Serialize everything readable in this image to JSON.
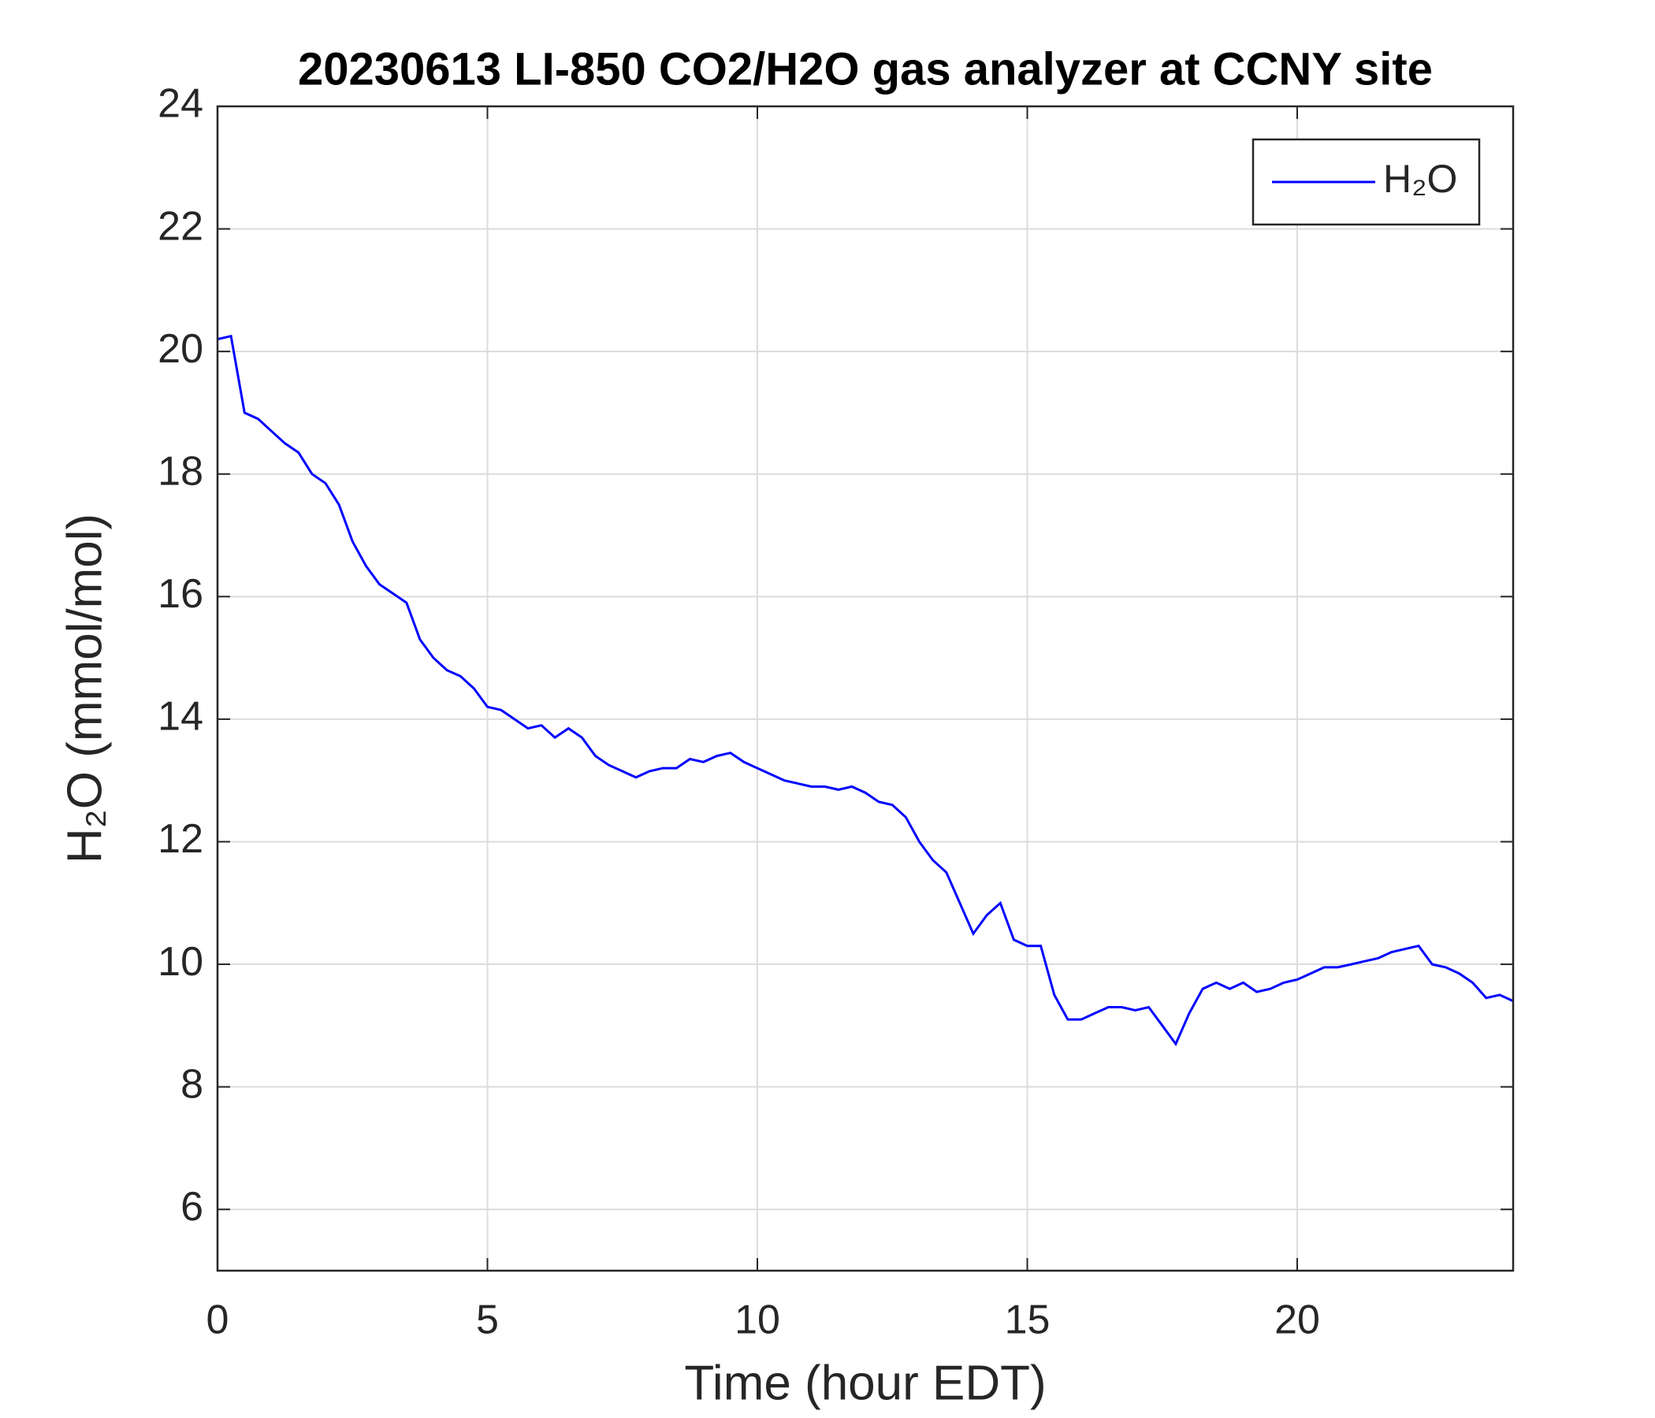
{
  "chart_data": {
    "type": "line",
    "title": "20230613 LI-850 CO2/H2O gas analyzer at CCNY site",
    "x_label": "Time (hour EDT)",
    "y_label": "H₂O (mmol/mol)",
    "x": [
      0,
      0.25,
      0.5,
      0.75,
      1,
      1.25,
      1.5,
      1.75,
      2,
      2.25,
      2.5,
      2.75,
      3,
      3.25,
      3.5,
      3.75,
      4,
      4.25,
      4.5,
      4.75,
      5,
      5.25,
      5.5,
      5.75,
      6,
      6.25,
      6.5,
      6.75,
      7,
      7.25,
      7.5,
      7.75,
      8,
      8.25,
      8.5,
      8.75,
      9,
      9.25,
      9.5,
      9.75,
      10,
      10.25,
      10.5,
      10.75,
      11,
      11.25,
      11.5,
      11.75,
      12,
      12.25,
      12.5,
      12.75,
      13,
      13.25,
      13.5,
      13.75,
      14,
      14.25,
      14.5,
      14.75,
      15,
      15.25,
      15.5,
      15.75,
      16,
      16.25,
      16.5,
      16.75,
      17,
      17.25,
      17.5,
      17.75,
      18,
      18.25,
      18.5,
      18.75,
      19,
      19.25,
      19.5,
      19.75,
      20,
      20.25,
      20.5,
      20.75,
      21,
      21.25,
      21.5,
      21.75,
      22,
      22.25,
      22.5,
      22.75,
      23,
      23.25,
      23.5,
      23.75,
      24
    ],
    "series": [
      {
        "name": "H₂O",
        "color": "#0000ff",
        "values": [
          20.2,
          20.25,
          19.0,
          18.9,
          18.7,
          18.5,
          18.35,
          18.0,
          17.85,
          17.5,
          16.9,
          16.5,
          16.2,
          16.05,
          15.9,
          15.3,
          15.0,
          14.8,
          14.7,
          14.5,
          14.2,
          14.15,
          14.0,
          13.85,
          13.9,
          13.7,
          13.85,
          13.7,
          13.4,
          13.25,
          13.15,
          13.05,
          13.15,
          13.2,
          13.2,
          13.35,
          13.3,
          13.4,
          13.45,
          13.3,
          13.2,
          13.1,
          13.0,
          12.95,
          12.9,
          12.9,
          12.85,
          12.9,
          12.8,
          12.65,
          12.6,
          12.4,
          12.0,
          11.7,
          11.5,
          11.0,
          10.5,
          10.8,
          11.0,
          10.4,
          10.3,
          10.3,
          9.5,
          9.1,
          9.1,
          9.2,
          9.3,
          9.3,
          9.25,
          9.3,
          9.0,
          8.7,
          9.2,
          9.6,
          9.7,
          9.6,
          9.7,
          9.55,
          9.6,
          9.7,
          9.75,
          9.85,
          9.95,
          9.95,
          10.0,
          10.05,
          10.1,
          10.2,
          10.25,
          10.3,
          10.0,
          9.95,
          9.85,
          9.7,
          9.45,
          9.5,
          9.4
        ]
      }
    ],
    "xlim": [
      0,
      24
    ],
    "xticks": [
      0,
      5,
      10,
      15,
      20
    ],
    "ylim": [
      5,
      24
    ],
    "yticks": [
      6,
      8,
      10,
      12,
      14,
      16,
      18,
      20,
      22,
      24
    ],
    "grid": true,
    "legend": "upper right"
  }
}
